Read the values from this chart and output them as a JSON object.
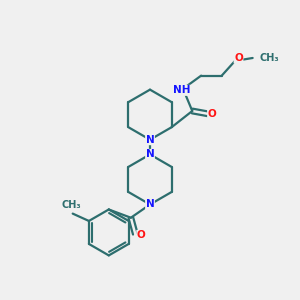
{
  "bg_color": "#f0f0f0",
  "bond_color": "#2d6e6e",
  "n_color": "#1414ff",
  "o_color": "#ff1414",
  "c_color": "#2d6e6e",
  "lw": 1.6,
  "fs": 7.5,
  "xlim": [
    0,
    10
  ],
  "ylim": [
    0,
    10
  ]
}
